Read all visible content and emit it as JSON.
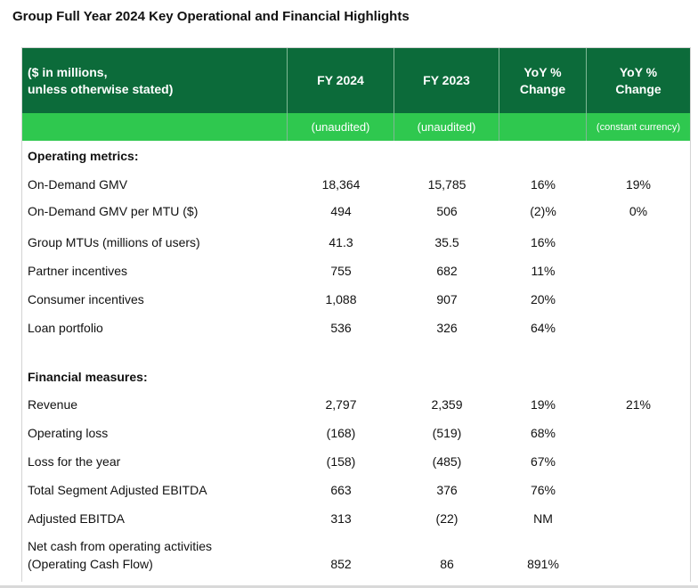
{
  "title": "Group Full Year 2024 Key Operational and Financial Highlights",
  "header": {
    "desc_line1": "($ in millions,",
    "desc_line2": "unless otherwise stated)",
    "col_fy2024": "FY 2024",
    "col_fy2023": "FY 2023",
    "col_yoy_line1": "YoY %",
    "col_yoy_line2": "Change",
    "col_yoy_cc_line1": "YoY %",
    "col_yoy_cc_line2": "Change"
  },
  "subheader": {
    "fy2024": "(unaudited)",
    "fy2023": "(unaudited)",
    "yoy": "",
    "yoy_cc": "(constant currency)"
  },
  "sections": [
    {
      "label": "Operating metrics:",
      "rows": [
        {
          "label": "On-Demand GMV",
          "fy2024": "18,364",
          "fy2023": "15,785",
          "yoy": "16%",
          "yoy_cc": "19%"
        },
        {
          "label": "On-Demand GMV per MTU ($)",
          "fy2024": "494",
          "fy2023": "506",
          "yoy": "(2)%",
          "yoy_cc": "0%"
        },
        {
          "label": "Group MTUs (millions of users)",
          "fy2024": "41.3",
          "fy2023": "35.5",
          "yoy": "16%",
          "yoy_cc": ""
        },
        {
          "label": "Partner incentives",
          "fy2024": "755",
          "fy2023": "682",
          "yoy": "11%",
          "yoy_cc": ""
        },
        {
          "label": "Consumer incentives",
          "fy2024": "1,088",
          "fy2023": "907",
          "yoy": "20%",
          "yoy_cc": ""
        },
        {
          "label": "Loan portfolio",
          "fy2024": "536",
          "fy2023": "326",
          "yoy": "64%",
          "yoy_cc": ""
        }
      ]
    },
    {
      "label": "Financial measures:",
      "rows": [
        {
          "label": "Revenue",
          "fy2024": "2,797",
          "fy2023": "2,359",
          "yoy": "19%",
          "yoy_cc": "21%"
        },
        {
          "label": "Operating loss",
          "fy2024": "(168)",
          "fy2023": "(519)",
          "yoy": "68%",
          "yoy_cc": ""
        },
        {
          "label": "Loss for the year",
          "fy2024": "(158)",
          "fy2023": "(485)",
          "yoy": "67%",
          "yoy_cc": ""
        },
        {
          "label": "Total Segment Adjusted EBITDA",
          "fy2024": "663",
          "fy2023": "376",
          "yoy": "76%",
          "yoy_cc": ""
        },
        {
          "label": "Adjusted EBITDA",
          "fy2024": "313",
          "fy2023": "(22)",
          "yoy": "NM",
          "yoy_cc": ""
        },
        {
          "label": "Net cash from operating activities",
          "label2": "(Operating Cash Flow)",
          "fy2024": "852",
          "fy2023": "86",
          "yoy": "891%",
          "yoy_cc": ""
        }
      ]
    }
  ],
  "colors": {
    "header_dark": "#0c6b3a",
    "header_light": "#2fc84f"
  }
}
